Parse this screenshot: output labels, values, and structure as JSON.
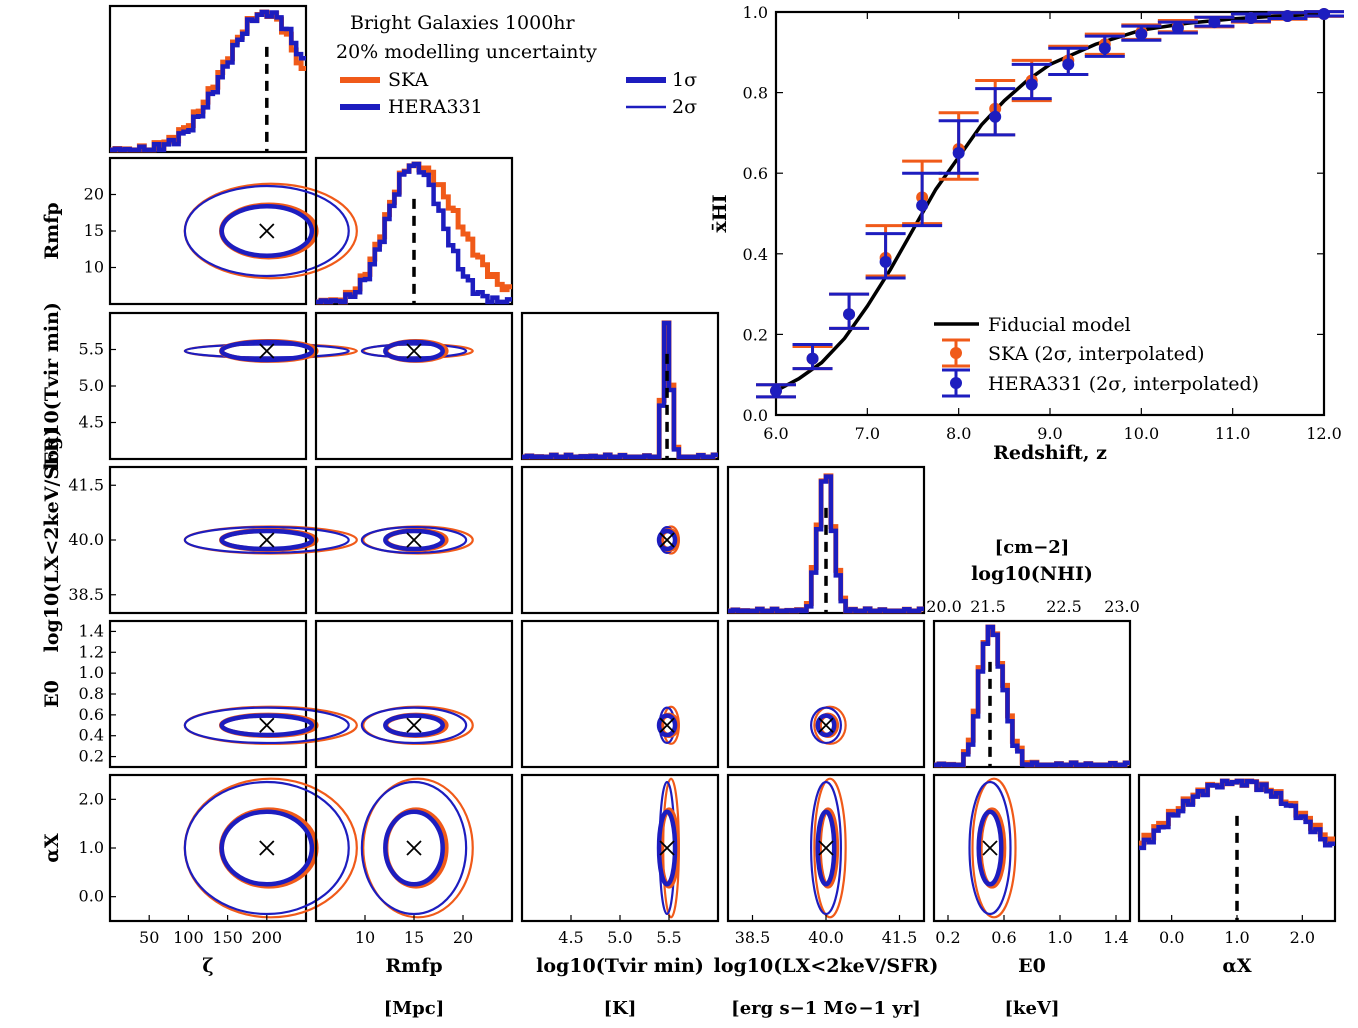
{
  "colors": {
    "ska": "#f05a19",
    "hera": "#1d1dbf",
    "fiducial": "#000000"
  },
  "corner_legend": {
    "title_line1": "Bright Galaxies 1000hr",
    "title_line2": "20% modelling uncertainty",
    "ska_label": "SKA",
    "hera_label": "HERA331",
    "sigma1_label": "1σ",
    "sigma2_label": "2σ"
  },
  "params": [
    {
      "key": "zeta",
      "label": "ζ",
      "unit": "",
      "ticks": [
        "50",
        "100",
        "150",
        "200"
      ],
      "yticks": [],
      "range": [
        0,
        250
      ],
      "fiducial": 200
    },
    {
      "key": "rmfp",
      "label": "Rmfp",
      "unit": "[Mpc]",
      "ticks": [
        "10",
        "15",
        "20"
      ],
      "yticks": [
        "10",
        "15",
        "20"
      ],
      "range": [
        5,
        25
      ],
      "fiducial": 15
    },
    {
      "key": "tvir",
      "label": "log10(Tvir min)",
      "unit": "[K]",
      "ticks": [
        "4.5",
        "5.0",
        "5.5"
      ],
      "yticks": [
        "4.5",
        "5.0",
        "5.5"
      ],
      "range": [
        4.0,
        6.0
      ],
      "fiducial": 5.48
    },
    {
      "key": "lx",
      "label": "log10(LX<2keV/SFR)",
      "unit": "[erg s−1 M⊙−1 yr]",
      "ticks": [
        "38.5",
        "40.0",
        "41.5"
      ],
      "yticks": [
        "38.5",
        "40.0",
        "41.5"
      ],
      "range": [
        38.0,
        42.0
      ],
      "fiducial": 40.0
    },
    {
      "key": "e0",
      "label": "E0",
      "unit": "[keV]",
      "ticks": [
        "0.2",
        "0.6",
        "1.0",
        "1.4"
      ],
      "yticks": [
        "0.2",
        "0.4",
        "0.6",
        "0.8",
        "1.0",
        "1.2",
        "1.4"
      ],
      "range": [
        0.1,
        1.5
      ],
      "fiducial": 0.5
    },
    {
      "key": "alphax",
      "label": "αX",
      "unit": "",
      "ticks": [
        "0.0",
        "1.0",
        "2.0"
      ],
      "yticks": [
        "0.0",
        "1.0",
        "2.0"
      ],
      "range": [
        -0.5,
        2.5
      ],
      "fiducial": 1.0
    }
  ],
  "nhi_axis": {
    "label": "log10(NHI)",
    "unit": "[cm−2]",
    "ticks": [
      "20.0",
      "21.5",
      "22.5",
      "23.0"
    ]
  },
  "chart_data": {
    "type": "line",
    "xlabel": "Redshift, z",
    "ylabel": "x̄HI",
    "xlim": [
      6.0,
      12.0
    ],
    "ylim": [
      0.0,
      1.0
    ],
    "xticks": [
      "6.0",
      "7.0",
      "8.0",
      "9.0",
      "10.0",
      "11.0",
      "12.0"
    ],
    "yticks": [
      "0.0",
      "0.2",
      "0.4",
      "0.6",
      "0.8",
      "1.0"
    ],
    "legend_position": "lower-right",
    "series": [
      {
        "name": "Fiducial model",
        "x": [
          6.0,
          6.25,
          6.5,
          6.75,
          7.0,
          7.25,
          7.5,
          7.75,
          8.0,
          8.25,
          8.5,
          8.75,
          9.0,
          9.5,
          10.0,
          10.5,
          11.0,
          11.5,
          12.0
        ],
        "y": [
          0.06,
          0.09,
          0.13,
          0.19,
          0.27,
          0.36,
          0.46,
          0.56,
          0.64,
          0.72,
          0.78,
          0.83,
          0.87,
          0.92,
          0.955,
          0.972,
          0.983,
          0.99,
          0.995
        ]
      },
      {
        "name": "SKA (2σ, interpolated)",
        "x": [
          6.0,
          6.4,
          6.8,
          7.2,
          7.6,
          8.0,
          8.4,
          8.8,
          9.2,
          9.6,
          10.0,
          10.4,
          10.8,
          11.2,
          11.6,
          12.0
        ],
        "y": [
          0.06,
          0.14,
          0.25,
          0.39,
          0.54,
          0.66,
          0.76,
          0.83,
          0.88,
          0.92,
          0.95,
          0.965,
          0.975,
          0.985,
          0.99,
          0.995
        ],
        "err_lo": [
          0.015,
          0.025,
          0.035,
          0.045,
          0.065,
          0.075,
          0.065,
          0.05,
          0.035,
          0.025,
          0.018,
          0.014,
          0.012,
          0.01,
          0.008,
          0.006
        ],
        "err_hi": [
          0.015,
          0.03,
          0.05,
          0.08,
          0.09,
          0.09,
          0.07,
          0.05,
          0.035,
          0.025,
          0.018,
          0.014,
          0.012,
          0.01,
          0.008,
          0.006
        ]
      },
      {
        "name": "HERA331 (2σ, interpolated)",
        "x": [
          6.0,
          6.4,
          6.8,
          7.2,
          7.6,
          8.0,
          8.4,
          8.8,
          9.2,
          9.6,
          10.0,
          10.4,
          10.8,
          11.2,
          11.6,
          12.0
        ],
        "y": [
          0.06,
          0.14,
          0.25,
          0.38,
          0.52,
          0.65,
          0.74,
          0.82,
          0.87,
          0.91,
          0.945,
          0.96,
          0.975,
          0.985,
          0.99,
          0.995
        ],
        "err_lo": [
          0.015,
          0.025,
          0.035,
          0.04,
          0.05,
          0.05,
          0.045,
          0.035,
          0.025,
          0.02,
          0.015,
          0.012,
          0.01,
          0.008,
          0.006,
          0.005
        ],
        "err_hi": [
          0.015,
          0.035,
          0.05,
          0.07,
          0.08,
          0.08,
          0.07,
          0.05,
          0.04,
          0.03,
          0.02,
          0.015,
          0.012,
          0.01,
          0.008,
          0.006
        ]
      }
    ]
  }
}
